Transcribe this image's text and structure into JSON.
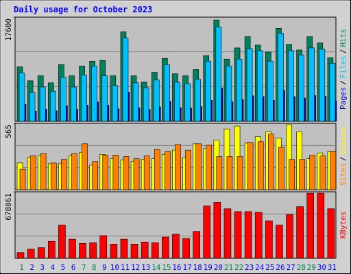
{
  "chart_data": [
    {
      "type": "bar",
      "title": "Daily usage for October 2023",
      "legend_separator": "/",
      "ylim": [
        0,
        17600
      ],
      "yticks": [
        17600
      ],
      "grid": true,
      "series": [
        {
          "name": "Hits",
          "color": "#00805c",
          "values": [
            9200,
            6850,
            7680,
            6500,
            9570,
            7680,
            9330,
            10160,
            10280,
            7680,
            15120,
            7680,
            6610,
            8270,
            10630,
            8030,
            7680,
            8740,
            11100,
            17120,
            10510,
            12400,
            14290,
            12870,
            11690,
            15710,
            12990,
            12050,
            14290,
            13230,
            10750
          ]
        },
        {
          "name": "Files",
          "color": "#00c0ff",
          "values": [
            8150,
            4840,
            5790,
            5080,
            7440,
            5790,
            7800,
            9330,
            7680,
            6020,
            14050,
            6500,
            5670,
            6970,
            9570,
            6610,
            6380,
            7090,
            10160,
            15940,
            9330,
            10510,
            12280,
            11930,
            10160,
            14880,
            11930,
            11220,
            12400,
            12160,
            9800
          ]
        },
        {
          "name": "Pages",
          "color": "#0000c0",
          "values": [
            2850,
            1700,
            2030,
            1780,
            2600,
            2030,
            2730,
            3270,
            2690,
            2110,
            4920,
            2280,
            1980,
            2440,
            3350,
            2310,
            2230,
            2480,
            3550,
            5580,
            3270,
            3680,
            4300,
            4170,
            3560,
            5210,
            4170,
            3930,
            4340,
            4260,
            3430
          ]
        }
      ]
    },
    {
      "type": "bar",
      "legend_separator": "/",
      "ylim": [
        0,
        565
      ],
      "yticks": [
        565
      ],
      "grid": true,
      "series": [
        {
          "name": "Visits",
          "color": "#ffff00",
          "values": [
            228,
            277,
            288,
            222,
            222,
            288,
            319,
            210,
            301,
            264,
            252,
            240,
            258,
            264,
            301,
            337,
            270,
            391,
            349,
            421,
            517,
            541,
            397,
            451,
            493,
            439,
            553,
            493,
            264,
            313,
            325
          ]
        },
        {
          "name": "Sites",
          "color": "#ff8000",
          "values": [
            174,
            288,
            307,
            228,
            258,
            307,
            391,
            240,
            295,
            295,
            282,
            264,
            288,
            343,
            325,
            385,
            337,
            391,
            379,
            282,
            282,
            282,
            403,
            409,
            475,
            361,
            258,
            258,
            295,
            288,
            325
          ]
        }
      ]
    },
    {
      "type": "bar",
      "ylim": [
        0,
        678061
      ],
      "yticks": [
        678061
      ],
      "grid": true,
      "categories": [
        "1",
        "2",
        "3",
        "4",
        "5",
        "6",
        "7",
        "8",
        "9",
        "10",
        "11",
        "12",
        "13",
        "14",
        "15",
        "16",
        "17",
        "18",
        "19",
        "20",
        "21",
        "22",
        "23",
        "24",
        "25",
        "26",
        "27",
        "28",
        "29",
        "30",
        "31"
      ],
      "category_colors": [
        "#00805c",
        "#0000ff",
        "#0000ff",
        "#0000ff",
        "#0000ff",
        "#0000ff",
        "#00805c",
        "#00805c",
        "#0000ff",
        "#0000ff",
        "#0000ff",
        "#0000ff",
        "#0000ff",
        "#00805c",
        "#00805c",
        "#0000ff",
        "#0000ff",
        "#0000ff",
        "#0000ff",
        "#0000ff",
        "#00805c",
        "#00805c",
        "#0000ff",
        "#0000ff",
        "#0000ff",
        "#0000ff",
        "#0000ff",
        "#00805c",
        "#00805c",
        "#0000ff",
        "#0000ff"
      ],
      "series": [
        {
          "name": "KBytes",
          "color": "#ff0000",
          "values": [
            57700,
            93770,
            108200,
            173110,
            339030,
            194760,
            151480,
            158690,
            230820,
            144270,
            194760,
            144270,
            165910,
            158690,
            216400,
            245250,
            201980,
            274110,
            533790,
            569860,
            504930,
            476080,
            476080,
            468870,
            382310,
            339030,
            447230,
            526580,
            663630,
            663630,
            504930
          ]
        }
      ]
    }
  ]
}
